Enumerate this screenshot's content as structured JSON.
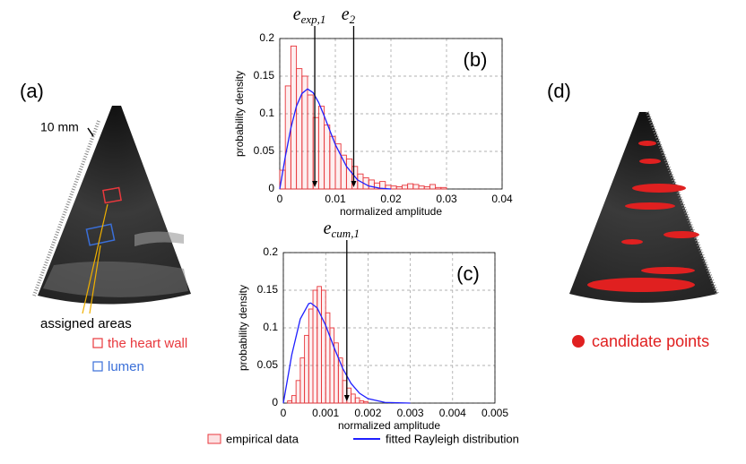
{
  "labels": {
    "a": "(a)",
    "d": "(d)",
    "scale": "10 mm",
    "assigned_areas": "assigned areas",
    "heart_wall": "the heart wall",
    "lumen": "lumen",
    "candidate_points": "candidate points"
  },
  "chart_data": [
    {
      "type": "histogram",
      "panel_label": "(b)",
      "x_label": "normalized amplitude",
      "y_label": "probability density",
      "xlim": [
        0,
        0.04
      ],
      "ylim": [
        0,
        0.2
      ],
      "xticks": [
        0,
        0.01,
        0.02,
        0.03,
        0.04
      ],
      "yticks": [
        0,
        0.05,
        0.1,
        0.15,
        0.2
      ],
      "grid": true,
      "annotations": [
        {
          "text": "e",
          "subscript": "exp,1",
          "x": 0.0063
        },
        {
          "text": "e",
          "subscript": "2",
          "x": 0.0133
        }
      ],
      "series": [
        {
          "name": "empirical data",
          "color": "#e8383d",
          "type": "histogram",
          "bins": [
            0,
            0.001,
            0.002,
            0.003,
            0.004,
            0.005,
            0.006,
            0.007,
            0.008,
            0.009,
            0.01,
            0.011,
            0.012,
            0.013,
            0.014,
            0.015,
            0.016,
            0.017,
            0.018,
            0.019,
            0.02,
            0.021,
            0.022,
            0.023,
            0.024,
            0.025,
            0.026,
            0.027,
            0.028,
            0.029,
            0.03
          ],
          "values": [
            0.025,
            0.137,
            0.19,
            0.16,
            0.15,
            0.125,
            0.095,
            0.11,
            0.085,
            0.07,
            0.06,
            0.045,
            0.04,
            0.03,
            0.02,
            0.015,
            0.012,
            0.008,
            0.01,
            0.005,
            0.004,
            0.003,
            0.005,
            0.007,
            0.006,
            0.004,
            0.003,
            0.006,
            0.002,
            0.002
          ]
        },
        {
          "color": "#1f1fff",
          "type": "line",
          "x": [
            0,
            0.001,
            0.002,
            0.003,
            0.004,
            0.005,
            0.006,
            0.007,
            0.008,
            0.009,
            0.01,
            0.012,
            0.014,
            0.016,
            0.018,
            0.02
          ],
          "values": [
            0,
            0.043,
            0.081,
            0.11,
            0.127,
            0.133,
            0.128,
            0.115,
            0.097,
            0.078,
            0.059,
            0.03,
            0.012,
            0.004,
            0.001,
            0
          ]
        }
      ]
    },
    {
      "type": "histogram",
      "panel_label": "(c)",
      "x_label": "normalized amplitude",
      "y_label": "probability density",
      "xlim": [
        0,
        0.005
      ],
      "ylim": [
        0,
        0.2
      ],
      "xticks": [
        0,
        0.001,
        0.002,
        0.003,
        0.004,
        0.005
      ],
      "yticks": [
        0,
        0.05,
        0.1,
        0.15,
        0.2
      ],
      "grid": true,
      "annotations": [
        {
          "text": "e",
          "subscript": "cum,1",
          "x": 0.0015
        }
      ],
      "series": [
        {
          "color": "#e8383d",
          "type": "histogram",
          "bins": [
            0.0001,
            0.0002,
            0.0003,
            0.0004,
            0.0005,
            0.0006,
            0.0007,
            0.0008,
            0.0009,
            0.001,
            0.0011,
            0.0012,
            0.0013,
            0.0014,
            0.0015,
            0.0016,
            0.0017,
            0.0018,
            0.0019,
            0.002
          ],
          "values": [
            0.003,
            0.01,
            0.03,
            0.06,
            0.09,
            0.125,
            0.15,
            0.155,
            0.15,
            0.12,
            0.1,
            0.08,
            0.06,
            0.03,
            0.02,
            0.012,
            0.007,
            0.003,
            0.002
          ]
        },
        {
          "name": "fitted Rayleigh distribution",
          "color": "#1f1fff",
          "type": "line",
          "x": [
            0,
            0.0002,
            0.0004,
            0.0006,
            0.00065,
            0.0008,
            0.001,
            0.0012,
            0.0014,
            0.0016,
            0.0018,
            0.002,
            0.0024,
            0.003
          ],
          "values": [
            0,
            0.0644,
            0.1117,
            0.1322,
            0.133,
            0.1265,
            0.1033,
            0.0737,
            0.0464,
            0.0261,
            0.0131,
            0.0059,
            0.0009,
            0
          ]
        }
      ]
    }
  ]
}
